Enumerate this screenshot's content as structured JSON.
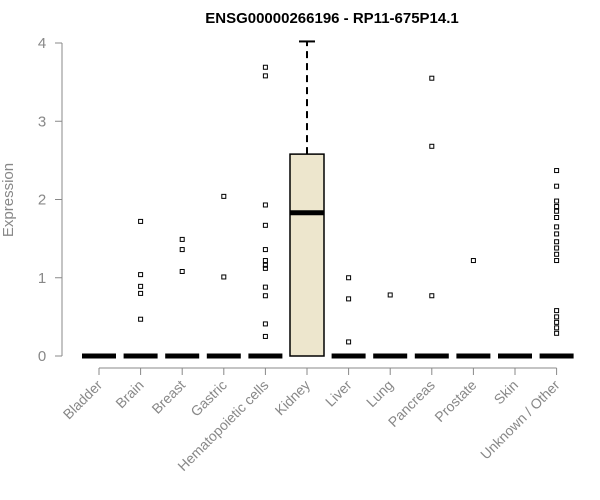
{
  "chart_data": {
    "type": "boxplot",
    "title": "ENSG00000266196 - RP11-675P14.1",
    "ylabel": "Expression",
    "xlabel": "",
    "ylim": [
      0,
      4
    ],
    "yticks": [
      0,
      1,
      2,
      3,
      4
    ],
    "grid": false,
    "box_color": "#ede6cd",
    "categories": [
      "Bladder",
      "Brain",
      "Breast",
      "Gastric",
      "Hematopoietic cells",
      "Kidney",
      "Liver",
      "Lung",
      "Pancreas",
      "Prostate",
      "Skin",
      "Unknown / Other"
    ],
    "boxes": [
      {
        "category": "Bladder",
        "min": 0,
        "q1": 0,
        "median": 0,
        "q3": 0,
        "max": 0,
        "outliers": []
      },
      {
        "category": "Brain",
        "min": 0,
        "q1": 0,
        "median": 0,
        "q3": 0,
        "max": 0,
        "outliers": [
          1.72,
          1.04,
          0.89,
          0.8,
          0.47
        ]
      },
      {
        "category": "Breast",
        "min": 0,
        "q1": 0,
        "median": 0,
        "q3": 0,
        "max": 0,
        "outliers": [
          1.49,
          1.36,
          1.08
        ]
      },
      {
        "category": "Gastric",
        "min": 0,
        "q1": 0,
        "median": 0,
        "q3": 0,
        "max": 0,
        "outliers": [
          2.04,
          1.01
        ]
      },
      {
        "category": "Hematopoietic cells",
        "min": 0,
        "q1": 0,
        "median": 0,
        "q3": 0,
        "max": 0,
        "outliers": [
          3.69,
          3.58,
          1.93,
          1.67,
          1.36,
          1.22,
          1.16,
          1.12,
          0.88,
          0.77,
          0.41,
          0.25
        ]
      },
      {
        "category": "Kidney",
        "min": 0,
        "q1": 0,
        "median": 1.83,
        "q3": 2.58,
        "max": 4.02,
        "outliers": []
      },
      {
        "category": "Liver",
        "min": 0,
        "q1": 0,
        "median": 0,
        "q3": 0,
        "max": 0,
        "outliers": [
          1.0,
          0.73,
          0.18
        ]
      },
      {
        "category": "Lung",
        "min": 0,
        "q1": 0,
        "median": 0,
        "q3": 0,
        "max": 0,
        "outliers": [
          0.78
        ]
      },
      {
        "category": "Pancreas",
        "min": 0,
        "q1": 0,
        "median": 0,
        "q3": 0,
        "max": 0,
        "outliers": [
          3.55,
          2.68,
          0.77
        ]
      },
      {
        "category": "Prostate",
        "min": 0,
        "q1": 0,
        "median": 0,
        "q3": 0,
        "max": 0,
        "outliers": [
          1.22
        ]
      },
      {
        "category": "Skin",
        "min": 0,
        "q1": 0,
        "median": 0,
        "q3": 0,
        "max": 0,
        "outliers": []
      },
      {
        "category": "Unknown / Other",
        "min": 0,
        "q1": 0,
        "median": 0,
        "q3": 0,
        "max": 0,
        "outliers": [
          2.37,
          2.17,
          1.98,
          1.91,
          1.85,
          1.77,
          1.65,
          1.56,
          1.46,
          1.38,
          1.3,
          1.22,
          0.58,
          0.5,
          0.43,
          0.36,
          0.29
        ]
      }
    ]
  }
}
